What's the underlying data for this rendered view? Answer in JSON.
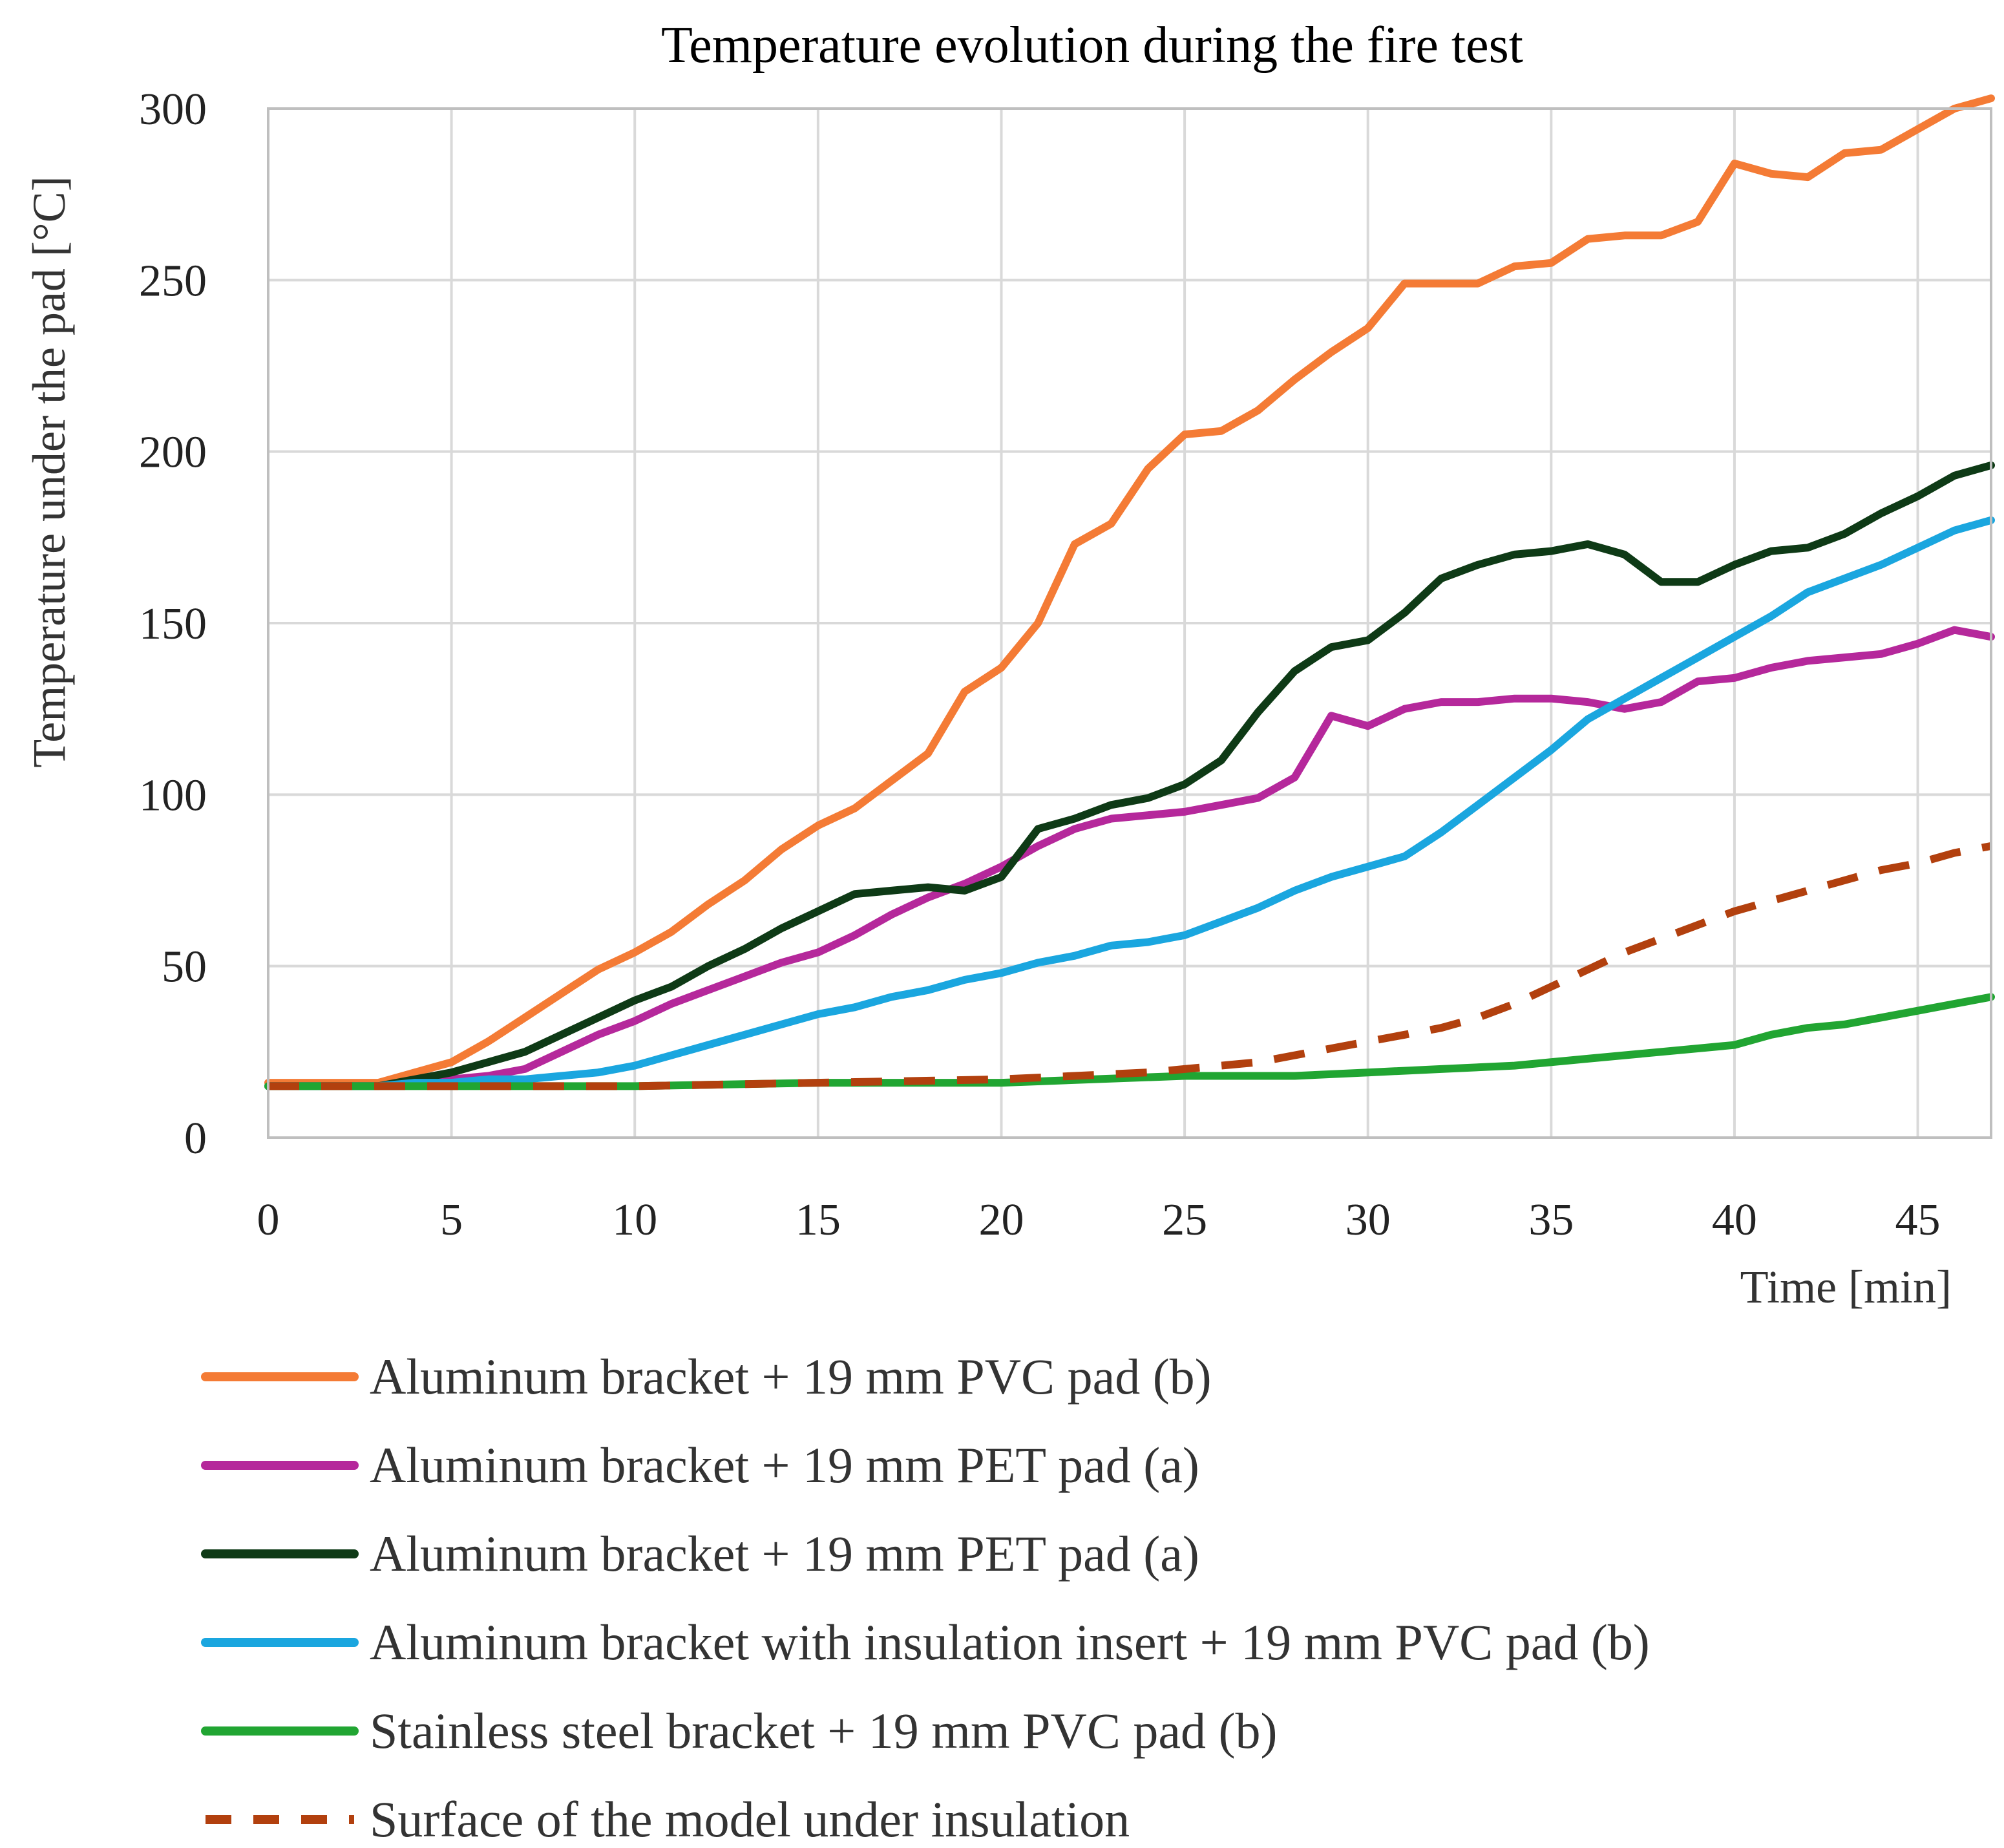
{
  "chart_data": {
    "type": "line",
    "title": "Temperature evolution during the fire test",
    "xlabel": "Time [min]",
    "ylabel": "Temperature under the pad [°C]",
    "xlim": [
      0,
      47
    ],
    "ylim": [
      0,
      300
    ],
    "xticks": [
      0,
      5,
      10,
      15,
      20,
      25,
      30,
      35,
      40,
      45
    ],
    "yticks": [
      0,
      50,
      100,
      150,
      200,
      250,
      300
    ],
    "grid": true,
    "legend_position": "bottom",
    "series": [
      {
        "name": "Aluminum bracket + 19 mm PVC pad (b)",
        "color": "#F47B35",
        "dashed": false,
        "points": [
          [
            0,
            16
          ],
          [
            1,
            16
          ],
          [
            2,
            16
          ],
          [
            3,
            16
          ],
          [
            4,
            19
          ],
          [
            5,
            22
          ],
          [
            6,
            28
          ],
          [
            7,
            35
          ],
          [
            8,
            42
          ],
          [
            9,
            49
          ],
          [
            10,
            54
          ],
          [
            11,
            60
          ],
          [
            12,
            68
          ],
          [
            13,
            75
          ],
          [
            14,
            84
          ],
          [
            15,
            91
          ],
          [
            16,
            96
          ],
          [
            17,
            104
          ],
          [
            18,
            112
          ],
          [
            19,
            130
          ],
          [
            20,
            137
          ],
          [
            21,
            150
          ],
          [
            22,
            173
          ],
          [
            23,
            179
          ],
          [
            24,
            195
          ],
          [
            25,
            205
          ],
          [
            26,
            206
          ],
          [
            27,
            212
          ],
          [
            28,
            221
          ],
          [
            29,
            229
          ],
          [
            30,
            236
          ],
          [
            31,
            249
          ],
          [
            32,
            249
          ],
          [
            33,
            249
          ],
          [
            34,
            254
          ],
          [
            35,
            255
          ],
          [
            36,
            262
          ],
          [
            37,
            263
          ],
          [
            38,
            263
          ],
          [
            39,
            267
          ],
          [
            40,
            284
          ],
          [
            41,
            281
          ],
          [
            42,
            280
          ],
          [
            43,
            287
          ],
          [
            44,
            288
          ],
          [
            45,
            294
          ],
          [
            46,
            300
          ],
          [
            47,
            303
          ]
        ]
      },
      {
        "name": "Aluminum bracket + 19 mm PET pad (a)",
        "color": "#B5289B",
        "dashed": false,
        "points": [
          [
            0,
            15
          ],
          [
            1,
            15
          ],
          [
            2,
            15
          ],
          [
            3,
            15
          ],
          [
            4,
            16
          ],
          [
            5,
            17
          ],
          [
            6,
            18
          ],
          [
            7,
            20
          ],
          [
            8,
            25
          ],
          [
            9,
            30
          ],
          [
            10,
            34
          ],
          [
            11,
            39
          ],
          [
            12,
            43
          ],
          [
            13,
            47
          ],
          [
            14,
            51
          ],
          [
            15,
            54
          ],
          [
            16,
            59
          ],
          [
            17,
            65
          ],
          [
            18,
            70
          ],
          [
            19,
            74
          ],
          [
            20,
            79
          ],
          [
            21,
            85
          ],
          [
            22,
            90
          ],
          [
            23,
            93
          ],
          [
            24,
            94
          ],
          [
            25,
            95
          ],
          [
            26,
            97
          ],
          [
            27,
            99
          ],
          [
            28,
            105
          ],
          [
            29,
            123
          ],
          [
            30,
            120
          ],
          [
            31,
            125
          ],
          [
            32,
            127
          ],
          [
            33,
            127
          ],
          [
            34,
            128
          ],
          [
            35,
            128
          ],
          [
            36,
            127
          ],
          [
            37,
            125
          ],
          [
            38,
            127
          ],
          [
            39,
            133
          ],
          [
            40,
            134
          ],
          [
            41,
            137
          ],
          [
            42,
            139
          ],
          [
            43,
            140
          ],
          [
            44,
            141
          ],
          [
            45,
            144
          ],
          [
            46,
            148
          ],
          [
            47,
            146
          ]
        ]
      },
      {
        "name": "Aluminum bracket + 19 mm PET pad (a)",
        "color": "#0E3A16",
        "dashed": false,
        "points": [
          [
            0,
            15
          ],
          [
            1,
            15
          ],
          [
            2,
            15
          ],
          [
            3,
            15
          ],
          [
            4,
            17
          ],
          [
            5,
            19
          ],
          [
            6,
            22
          ],
          [
            7,
            25
          ],
          [
            8,
            30
          ],
          [
            9,
            35
          ],
          [
            10,
            40
          ],
          [
            11,
            44
          ],
          [
            12,
            50
          ],
          [
            13,
            55
          ],
          [
            14,
            61
          ],
          [
            15,
            66
          ],
          [
            16,
            71
          ],
          [
            17,
            72
          ],
          [
            18,
            73
          ],
          [
            19,
            72
          ],
          [
            20,
            76
          ],
          [
            21,
            90
          ],
          [
            22,
            93
          ],
          [
            23,
            97
          ],
          [
            24,
            99
          ],
          [
            25,
            103
          ],
          [
            26,
            110
          ],
          [
            27,
            124
          ],
          [
            28,
            136
          ],
          [
            29,
            143
          ],
          [
            30,
            145
          ],
          [
            31,
            153
          ],
          [
            32,
            163
          ],
          [
            33,
            167
          ],
          [
            34,
            170
          ],
          [
            35,
            171
          ],
          [
            36,
            173
          ],
          [
            37,
            170
          ],
          [
            38,
            162
          ],
          [
            39,
            162
          ],
          [
            40,
            167
          ],
          [
            41,
            171
          ],
          [
            42,
            172
          ],
          [
            43,
            176
          ],
          [
            44,
            182
          ],
          [
            45,
            187
          ],
          [
            46,
            193
          ],
          [
            47,
            196
          ]
        ]
      },
      {
        "name": "Aluminum bracket with insulation insert + 19 mm PVC pad (b)",
        "color": "#1AA6DF",
        "dashed": false,
        "points": [
          [
            0,
            15
          ],
          [
            1,
            15
          ],
          [
            2,
            15
          ],
          [
            3,
            15
          ],
          [
            4,
            16
          ],
          [
            5,
            16
          ],
          [
            6,
            17
          ],
          [
            7,
            17
          ],
          [
            8,
            18
          ],
          [
            9,
            19
          ],
          [
            10,
            21
          ],
          [
            11,
            24
          ],
          [
            12,
            27
          ],
          [
            13,
            30
          ],
          [
            14,
            33
          ],
          [
            15,
            36
          ],
          [
            16,
            38
          ],
          [
            17,
            41
          ],
          [
            18,
            43
          ],
          [
            19,
            46
          ],
          [
            20,
            48
          ],
          [
            21,
            51
          ],
          [
            22,
            53
          ],
          [
            23,
            56
          ],
          [
            24,
            57
          ],
          [
            25,
            59
          ],
          [
            26,
            63
          ],
          [
            27,
            67
          ],
          [
            28,
            72
          ],
          [
            29,
            76
          ],
          [
            30,
            79
          ],
          [
            31,
            82
          ],
          [
            32,
            89
          ],
          [
            33,
            97
          ],
          [
            34,
            105
          ],
          [
            35,
            113
          ],
          [
            36,
            122
          ],
          [
            37,
            128
          ],
          [
            38,
            134
          ],
          [
            39,
            140
          ],
          [
            40,
            146
          ],
          [
            41,
            152
          ],
          [
            42,
            159
          ],
          [
            43,
            163
          ],
          [
            44,
            167
          ],
          [
            45,
            172
          ],
          [
            46,
            177
          ],
          [
            47,
            180
          ]
        ]
      },
      {
        "name": "Stainless steel bracket + 19 mm PVC pad (b)",
        "color": "#21A532",
        "dashed": false,
        "points": [
          [
            0,
            15
          ],
          [
            5,
            15
          ],
          [
            10,
            15
          ],
          [
            15,
            16
          ],
          [
            20,
            16
          ],
          [
            25,
            18
          ],
          [
            28,
            18
          ],
          [
            30,
            19
          ],
          [
            32,
            20
          ],
          [
            34,
            21
          ],
          [
            36,
            23
          ],
          [
            38,
            25
          ],
          [
            40,
            27
          ],
          [
            41,
            30
          ],
          [
            42,
            32
          ],
          [
            43,
            33
          ],
          [
            44,
            35
          ],
          [
            45,
            37
          ],
          [
            46,
            39
          ],
          [
            47,
            41
          ]
        ]
      },
      {
        "name": "Surface of the model under insulation",
        "color": "#B2400E",
        "dashed": true,
        "points": [
          [
            0,
            15
          ],
          [
            10,
            15
          ],
          [
            15,
            16
          ],
          [
            20,
            17
          ],
          [
            22,
            18
          ],
          [
            24,
            19
          ],
          [
            25,
            20
          ],
          [
            26,
            21
          ],
          [
            27,
            22
          ],
          [
            28,
            24
          ],
          [
            29,
            26
          ],
          [
            30,
            28
          ],
          [
            31,
            30
          ],
          [
            32,
            32
          ],
          [
            33,
            35
          ],
          [
            34,
            39
          ],
          [
            35,
            44
          ],
          [
            36,
            49
          ],
          [
            37,
            54
          ],
          [
            38,
            58
          ],
          [
            39,
            62
          ],
          [
            40,
            66
          ],
          [
            41,
            69
          ],
          [
            42,
            72
          ],
          [
            43,
            75
          ],
          [
            44,
            78
          ],
          [
            45,
            80
          ],
          [
            46,
            83
          ],
          [
            47,
            85
          ]
        ]
      }
    ]
  }
}
